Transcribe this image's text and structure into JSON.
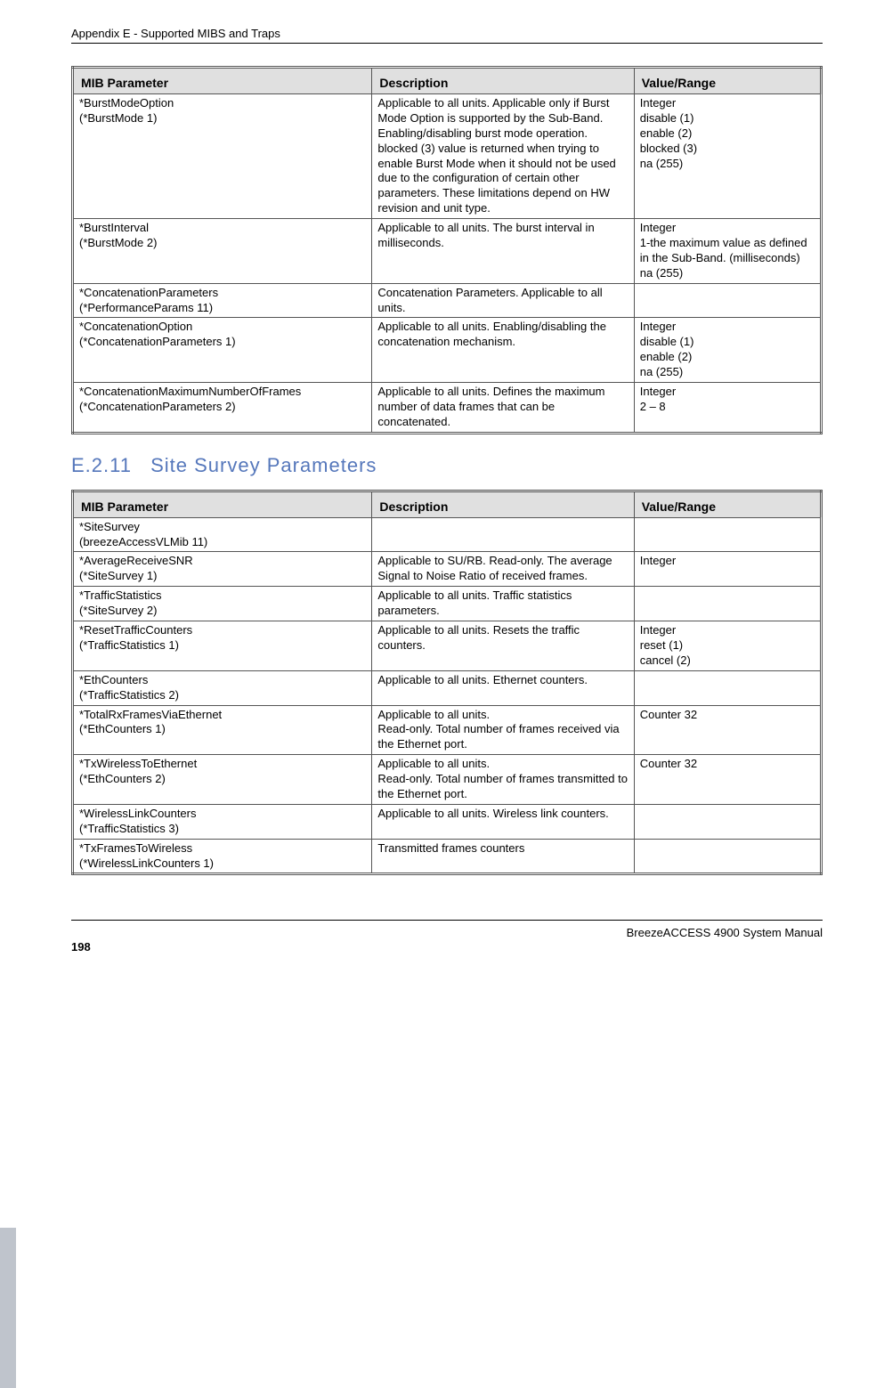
{
  "header": {
    "text": "Appendix E - Supported MIBS and Traps"
  },
  "table1": {
    "headers": [
      "MIB Parameter",
      "Description",
      "Value/Range"
    ],
    "rows": [
      {
        "param": "*BurstModeOption\n(*BurstMode 1)",
        "desc": "Applicable to all units. Applicable only if Burst Mode Option is supported by the Sub-Band. Enabling/disabling burst mode operation. blocked (3) value is returned when trying to enable Burst Mode when it should not be used due to the configuration of certain other parameters. These limitations depend on HW revision and unit type.",
        "val": "Integer\ndisable (1)\nenable (2)\nblocked (3)\nna (255)"
      },
      {
        "param": "*BurstInterval\n(*BurstMode 2)",
        "desc": "Applicable to all units. The burst interval in milliseconds.",
        "val": "Integer\n1-the maximum value as defined in the Sub-Band. (milliseconds)\nna (255)"
      },
      {
        "param": "*ConcatenationParameters\n(*PerformanceParams 11)",
        "desc": "Concatenation Parameters. Applicable to all units.",
        "val": ""
      },
      {
        "param": "*ConcatenationOption\n(*ConcatenationParameters 1)",
        "desc": "Applicable to all units. Enabling/disabling the concatenation mechanism.",
        "val": "Integer\ndisable (1)\nenable (2)\nna (255)"
      },
      {
        "param": "*ConcatenationMaximumNumberOfFrames\n(*ConcatenationParameters 2)",
        "desc": "Applicable to all units. Defines the maximum number of data frames that can be concatenated.",
        "val": "Integer\n2 – 8"
      }
    ]
  },
  "section": {
    "num": "E.2.11",
    "title": "Site Survey Parameters"
  },
  "table2": {
    "headers": [
      "MIB Parameter",
      "Description",
      "Value/Range"
    ],
    "rows": [
      {
        "param": "*SiteSurvey\n(breezeAccessVLMib 11)",
        "desc": "",
        "val": ""
      },
      {
        "param": "*AverageReceiveSNR\n(*SiteSurvey 1)",
        "desc": "Applicable to SU/RB. Read-only. The average Signal to Noise Ratio of received frames.",
        "val": "Integer"
      },
      {
        "param": "*TrafficStatistics\n(*SiteSurvey 2)",
        "desc": "Applicable to all units. Traffic statistics parameters.",
        "val": ""
      },
      {
        "param": "*ResetTrafficCounters\n(*TrafficStatistics 1)",
        "desc": "Applicable to all units. Resets the traffic counters.",
        "val": "Integer\nreset (1)\ncancel (2)"
      },
      {
        "param": "*EthCounters\n(*TrafficStatistics 2)",
        "desc": "Applicable to all units. Ethernet counters.",
        "val": ""
      },
      {
        "param": "*TotalRxFramesViaEthernet\n(*EthCounters 1)",
        "desc": "Applicable to all units.\nRead-only. Total number of frames received via the Ethernet port.",
        "val": "Counter 32"
      },
      {
        "param": "*TxWirelessToEthernet\n(*EthCounters 2)",
        "desc": "Applicable to all units.\nRead-only. Total number of frames transmitted to the Ethernet port.",
        "val": "Counter 32"
      },
      {
        "param": "*WirelessLinkCounters\n(*TrafficStatistics 3)",
        "desc": "Applicable to all units. Wireless link counters.",
        "val": ""
      },
      {
        "param": "*TxFramesToWireless\n(*WirelessLinkCounters 1)",
        "desc": "Transmitted frames counters",
        "val": ""
      }
    ]
  },
  "footer": {
    "page": "198",
    "manual": "BreezeACCESS 4900 System Manual"
  }
}
